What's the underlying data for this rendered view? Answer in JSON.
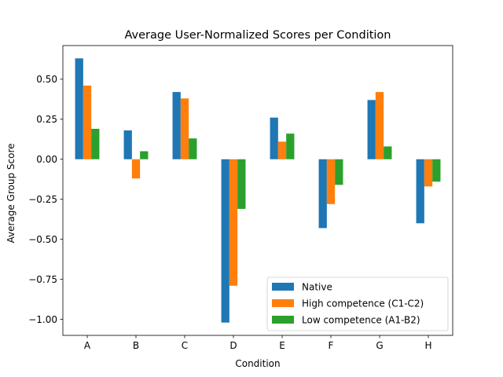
{
  "chart_data": {
    "type": "bar",
    "title": "Average User-Normalized Scores per Condition",
    "xlabel": "Condition",
    "ylabel": "Average Group Score",
    "categories": [
      "A",
      "B",
      "C",
      "D",
      "E",
      "F",
      "G",
      "H"
    ],
    "series": [
      {
        "name": "Native",
        "color": "#1f77b4",
        "values": [
          0.63,
          0.18,
          0.42,
          -1.02,
          0.26,
          -0.43,
          0.37,
          -0.4
        ]
      },
      {
        "name": "High competence (C1-C2)",
        "color": "#ff7f0e",
        "values": [
          0.46,
          -0.12,
          0.38,
          -0.79,
          0.11,
          -0.28,
          0.42,
          -0.17
        ]
      },
      {
        "name": "Low competence (A1-B2)",
        "color": "#2ca02c",
        "values": [
          0.19,
          0.05,
          0.13,
          -0.31,
          0.16,
          -0.16,
          0.08,
          -0.14
        ]
      }
    ],
    "ylim": [
      -1.1,
      0.71
    ],
    "yticks": [
      -1.0,
      -0.75,
      -0.5,
      -0.25,
      0.0,
      0.25,
      0.5
    ],
    "ytick_labels": [
      "−1.00",
      "−0.75",
      "−0.50",
      "−0.25",
      "0.00",
      "0.25",
      "0.50"
    ],
    "grid": false,
    "legend_position": "lower right"
  }
}
